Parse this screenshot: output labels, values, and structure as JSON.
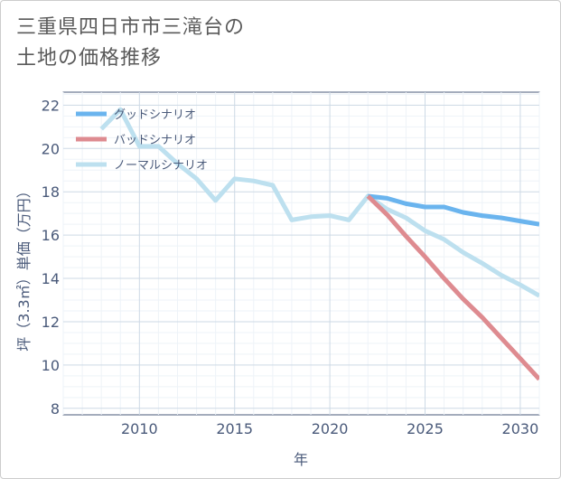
{
  "title_lines": [
    "三重県四日市市三滝台の",
    "土地の価格推移"
  ],
  "chart_data": {
    "type": "line",
    "title": "三重県四日市市三滝台の土地の価格推移",
    "xlabel": "年",
    "ylabel": "坪（3.3㎡）単価（万円）",
    "xlim": [
      2006,
      2031
    ],
    "ylim": [
      7.7,
      22.6
    ],
    "xticks": [
      2010,
      2015,
      2020,
      2025,
      2030
    ],
    "yticks": [
      8,
      10,
      12,
      14,
      16,
      18,
      20,
      22
    ],
    "legend_position": "top-left",
    "series": [
      {
        "name": "グッドシナリオ",
        "color": "#6ab4ee",
        "x": [
          2022,
          2023,
          2024,
          2025,
          2026,
          2027,
          2028,
          2029,
          2030,
          2031
        ],
        "y": [
          17.8,
          17.7,
          17.45,
          17.3,
          17.3,
          17.05,
          16.9,
          16.8,
          16.65,
          16.5
        ]
      },
      {
        "name": "バッドシナリオ",
        "color": "#de8b90",
        "x": [
          2022,
          2023,
          2024,
          2025,
          2026,
          2027,
          2028,
          2029,
          2030,
          2031
        ],
        "y": [
          17.8,
          16.95,
          15.95,
          15.0,
          14.0,
          13.05,
          12.2,
          11.25,
          10.3,
          9.35
        ]
      },
      {
        "name": "ノーマルシナリオ",
        "color": "#bde0ef",
        "x": [
          2008,
          2009,
          2010,
          2011,
          2012,
          2013,
          2014,
          2015,
          2016,
          2017,
          2018,
          2019,
          2020,
          2021,
          2022,
          2023,
          2024,
          2025,
          2026,
          2027,
          2028,
          2029,
          2030,
          2031
        ],
        "y": [
          20.9,
          21.8,
          20.1,
          20.1,
          19.3,
          18.6,
          17.6,
          18.6,
          18.5,
          18.3,
          16.7,
          16.85,
          16.9,
          16.7,
          17.8,
          17.2,
          16.8,
          16.2,
          15.8,
          15.2,
          14.7,
          14.15,
          13.7,
          13.2
        ]
      }
    ]
  }
}
